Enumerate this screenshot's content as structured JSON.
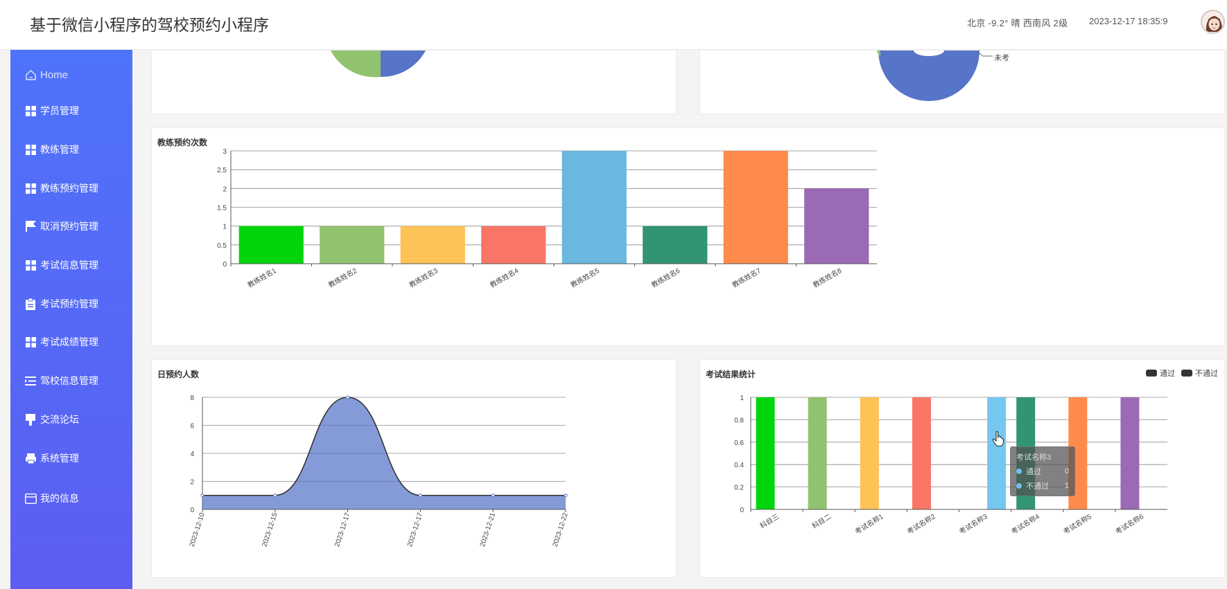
{
  "header": {
    "title": "基于微信小程序的驾校预约小程序",
    "weather": "北京  -9.2°  晴  西南风  2级",
    "datetime": "2023-12-17 18:35:9"
  },
  "sidebar": {
    "items": [
      {
        "label": "Home",
        "icon": "home-icon"
      },
      {
        "label": "学员管理",
        "icon": "grid-icon"
      },
      {
        "label": "教练管理",
        "icon": "grid-icon"
      },
      {
        "label": "教练预约管理",
        "icon": "grid-icon"
      },
      {
        "label": "取消预约管理",
        "icon": "flag-icon"
      },
      {
        "label": "考试信息管理",
        "icon": "grid-icon"
      },
      {
        "label": "考试预约管理",
        "icon": "clipboard-icon"
      },
      {
        "label": "考试成绩管理",
        "icon": "grid-icon"
      },
      {
        "label": "驾校信息管理",
        "icon": "list-icon"
      },
      {
        "label": "交流论坛",
        "icon": "brush-icon"
      },
      {
        "label": "系统管理",
        "icon": "printer-icon"
      },
      {
        "label": "我的信息",
        "icon": "card-icon"
      }
    ]
  },
  "pie_right": {
    "label": "未考"
  },
  "colors": [
    "#00d60b",
    "#91c26f",
    "#fec356",
    "#f97667",
    "#6ab7e0",
    "#319572",
    "#fe8b4c",
    "#9b6ab4"
  ],
  "chart_data": [
    {
      "type": "bar",
      "title": "教练预约次数",
      "categories": [
        "教练姓名1",
        "教练姓名2",
        "教练姓名3",
        "教练姓名4",
        "教练姓名5",
        "教练姓名6",
        "教练姓名7",
        "教练姓名8"
      ],
      "values": [
        1,
        1,
        1,
        1,
        3,
        1,
        3,
        2
      ],
      "ylim": [
        0,
        3
      ],
      "yticks": [
        "0",
        "0.5",
        "1",
        "1.5",
        "2",
        "2.5",
        "3"
      ]
    },
    {
      "type": "area",
      "title": "日预约人数",
      "x": [
        "2023-12-10",
        "2023-12-15",
        "2023-12-17",
        "2023-12-17",
        "2023-12-21",
        "2023-12-22"
      ],
      "x_tick_labels": [
        "2023-12-10",
        "2023-12-15",
        "2023-12-17",
        "2023-12-17",
        "2023-12-21",
        "2023-12-22"
      ],
      "values": [
        1,
        1,
        8,
        1,
        1,
        1
      ],
      "ylim": [
        0,
        8
      ],
      "yticks": [
        "0",
        "2",
        "4",
        "6",
        "8"
      ],
      "color": "#5674c8"
    },
    {
      "type": "bar",
      "title": "考试结果统计",
      "categories": [
        "科目三",
        "科目二",
        "考试名称1",
        "考试名称2",
        "考试名称3",
        "考试名称4",
        "考试名称5",
        "考试名称6"
      ],
      "series": [
        {
          "name": "通过",
          "values": [
            1,
            1,
            1,
            1,
            0,
            1,
            1,
            1
          ]
        },
        {
          "name": "不通过",
          "values": [
            0,
            0,
            0,
            0,
            1,
            0,
            0,
            0
          ]
        }
      ],
      "ylim": [
        0,
        1
      ],
      "yticks": [
        "0",
        "0.2",
        "0.4",
        "0.6",
        "0.8",
        "1"
      ],
      "legend_position": "top-right"
    }
  ],
  "tooltip": {
    "title": "考试名称3",
    "rows": [
      {
        "name": "通过",
        "value": "0"
      },
      {
        "name": "不通过",
        "value": "1"
      }
    ]
  }
}
